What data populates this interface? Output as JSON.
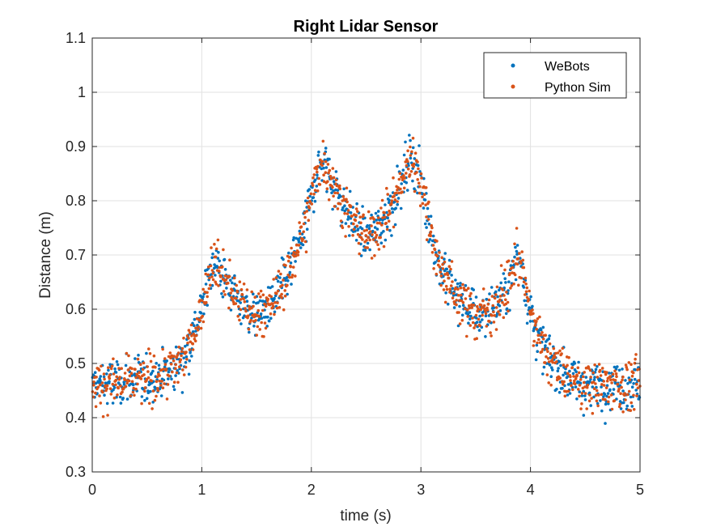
{
  "chart_data": {
    "type": "scatter",
    "title": "Right Lidar Sensor",
    "xlabel": "time (s)",
    "ylabel": "Distance (m)",
    "xlim": [
      0,
      5
    ],
    "ylim": [
      0.3,
      1.1
    ],
    "xticks": [
      "0",
      "1",
      "2",
      "3",
      "4",
      "5"
    ],
    "yticks": [
      "0.3",
      "0.4",
      "0.5",
      "0.6",
      "0.7",
      "0.8",
      "0.9",
      "1",
      "1.1"
    ],
    "grid": true,
    "legend_position": "top-right",
    "trend_description": "Noisy samples (noise about ±0.05 m) around a baseline ~0.46 m, with local peaks near t≈1.1 (0.70), t≈2.1 (0.88), t≈2.9 (0.88), t≈3.9 (0.70) and dips near t≈1.5 (0.59), t≈2.5 (0.73), t≈3.5 (0.59).",
    "underlying_curve": {
      "x": [
        0,
        0.5,
        0.75,
        0.9,
        1.0,
        1.1,
        1.2,
        1.35,
        1.5,
        1.65,
        1.8,
        1.95,
        2.05,
        2.1,
        2.2,
        2.35,
        2.5,
        2.65,
        2.8,
        2.9,
        2.95,
        3.05,
        3.15,
        3.3,
        3.5,
        3.65,
        3.8,
        3.88,
        3.92,
        3.97,
        4.1,
        4.3,
        4.5,
        5.0
      ],
      "y": [
        0.46,
        0.47,
        0.49,
        0.54,
        0.6,
        0.69,
        0.66,
        0.61,
        0.59,
        0.61,
        0.67,
        0.76,
        0.85,
        0.88,
        0.83,
        0.77,
        0.73,
        0.76,
        0.82,
        0.88,
        0.87,
        0.79,
        0.69,
        0.63,
        0.59,
        0.6,
        0.64,
        0.7,
        0.69,
        0.62,
        0.53,
        0.48,
        0.46,
        0.46
      ]
    },
    "series": [
      {
        "name": "WeBots",
        "color": "#0072BD",
        "noise": 0.05,
        "samples": 1000
      },
      {
        "name": "Python Sim",
        "color": "#D95319",
        "noise": 0.05,
        "samples": 1000
      }
    ]
  }
}
